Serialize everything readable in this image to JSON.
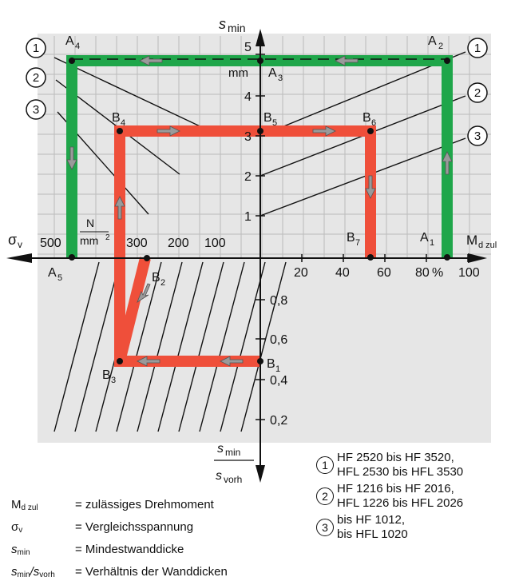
{
  "colors": {
    "green": "#1fa64a",
    "red": "#ef4f3a",
    "grid": "#bbbbbb",
    "panel": "#e6e6e6",
    "arrow": "#9a9a9a"
  },
  "axes": {
    "top_label": "s",
    "top_sub": "min",
    "left_label": "σ",
    "left_sub": "v",
    "right_label": "M",
    "right_sub": "d zul",
    "unit_n_num": "N",
    "unit_n_den": "mm",
    "unit_n_pow": "2",
    "unit_mm": "mm",
    "bottom_frac_num": "s",
    "bottom_frac_num_sub": "min",
    "bottom_frac_den": "s",
    "bottom_frac_den_sub": "vorh",
    "pct": "%",
    "ticks_smin": [
      "1",
      "2",
      "3",
      "4",
      "5"
    ],
    "ticks_sigma": [
      "500",
      "300",
      "200",
      "100"
    ],
    "ticks_md": [
      "20",
      "40",
      "60",
      "80",
      "100"
    ],
    "ticks_ratio": [
      "0,8",
      "0,6",
      "0,4",
      "0,2"
    ]
  },
  "points": {
    "A1": "A1",
    "A2": "A2",
    "A3": "A3",
    "A4": "A4",
    "A5": "A5",
    "B1": "B1",
    "B2": "B2",
    "B3": "B3",
    "B4": "B4",
    "B5": "B5",
    "B6": "B6",
    "B7": "B7"
  },
  "curve_markers": [
    "1",
    "2",
    "3"
  ],
  "legend_groups": [
    {
      "marker": "1",
      "lines": [
        "HF 2520 bis HF 3520,",
        "HFL 2530 bis HFL 3530"
      ]
    },
    {
      "marker": "2",
      "lines": [
        "HF 1216 bis HF 2016,",
        "HFL 1226 bis HFL 2026"
      ]
    },
    {
      "marker": "3",
      "lines": [
        "bis HF 1012,",
        "bis HFL 1020"
      ]
    }
  ],
  "symbols": [
    {
      "sym": "M",
      "sub": "d zul",
      "desc": "= zulässiges Drehmoment"
    },
    {
      "sym": "σ",
      "sub": "v",
      "desc": "= Vergleichsspannung"
    },
    {
      "sym": "s",
      "sub": "min",
      "desc": "= Mindestwanddicke"
    },
    {
      "sym": "s",
      "sub": "min",
      "sym2": "/s",
      "sub2": "vorh",
      "desc": "= Verhältnis der Wanddicken"
    }
  ]
}
